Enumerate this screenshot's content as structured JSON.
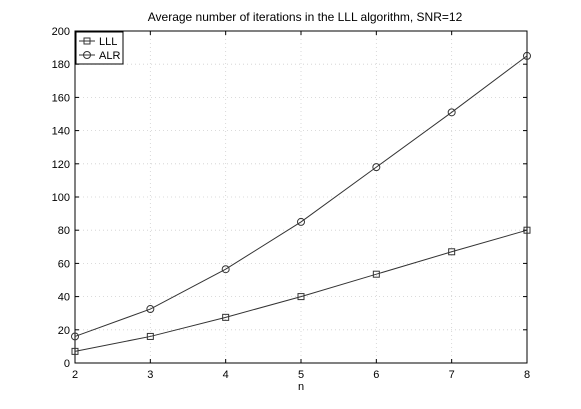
{
  "chart_data": {
    "type": "line",
    "title": "Average number of iterations in the LLL algorithm, SNR=12",
    "xlabel": "n",
    "ylabel": "",
    "x": [
      2,
      3,
      4,
      5,
      6,
      7,
      8
    ],
    "xlim": [
      2,
      8
    ],
    "ylim": [
      0,
      200
    ],
    "xticks": [
      "2",
      "3",
      "4",
      "5",
      "6",
      "7",
      "8"
    ],
    "yticks": [
      "0",
      "20",
      "40",
      "60",
      "80",
      "100",
      "120",
      "140",
      "160",
      "180",
      "200"
    ],
    "grid": true,
    "legend_position": "top-left",
    "series": [
      {
        "name": "LLL",
        "marker": "square",
        "values": [
          7,
          16,
          27.5,
          40,
          53.5,
          67,
          80
        ]
      },
      {
        "name": "ALR",
        "marker": "circle",
        "values": [
          16,
          32.5,
          56.5,
          85,
          118,
          151,
          185
        ]
      }
    ]
  }
}
